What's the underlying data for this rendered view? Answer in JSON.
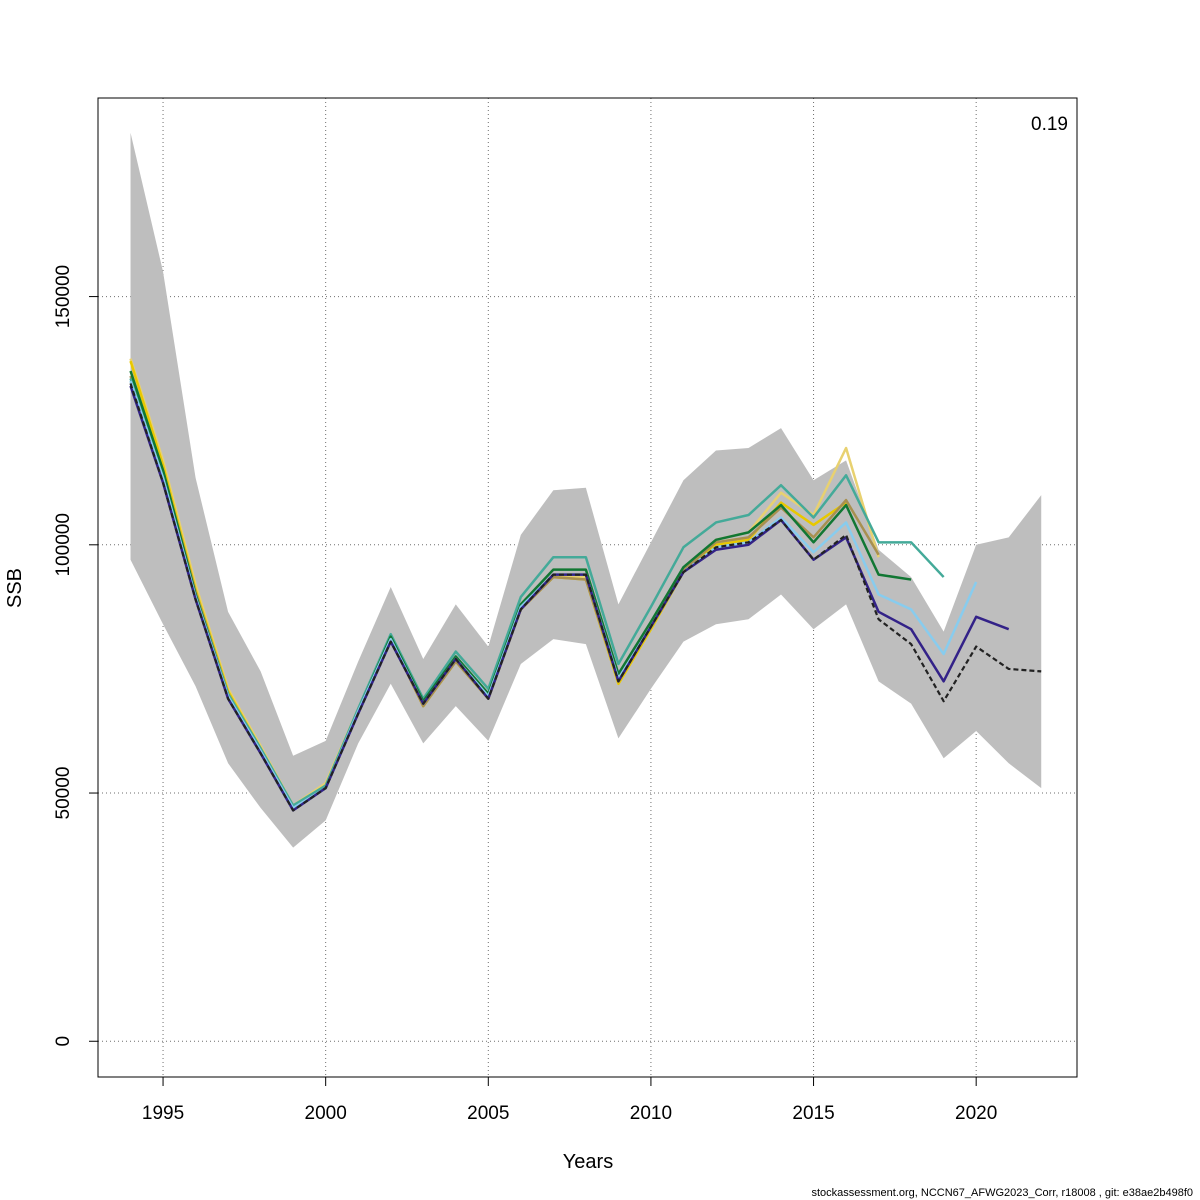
{
  "chart_data": {
    "type": "line",
    "xlabel": "Years",
    "ylabel": "SSB",
    "annotation": "0.19",
    "footer": "stockassessment.org, NCCN67_AFWG2023_Corr, r18008 , git: e38ae2b498f0",
    "xlim": [
      1993,
      2023.1
    ],
    "ylim": [
      -7200,
      190000
    ],
    "x_ticks": [
      1995,
      2000,
      2005,
      2010,
      2015,
      2020
    ],
    "y_ticks": [
      0,
      50000,
      100000,
      150000
    ],
    "grid": true,
    "confidence_band": {
      "x": [
        1994,
        1995,
        1996,
        1997,
        1998,
        1999,
        2000,
        2001,
        2002,
        2003,
        2004,
        2005,
        2006,
        2007,
        2008,
        2009,
        2010,
        2011,
        2012,
        2013,
        2014,
        2015,
        2016,
        2017,
        2018,
        2019,
        2020,
        2021,
        2022
      ],
      "lower": [
        97000,
        84000,
        71500,
        56000,
        47000,
        39000,
        44500,
        60000,
        72000,
        60000,
        67500,
        60500,
        76000,
        81000,
        80000,
        61000,
        71000,
        80500,
        84000,
        85000,
        90000,
        83000,
        88000,
        72500,
        68000,
        57000,
        62500,
        56000,
        51000
      ],
      "upper": [
        183000,
        155000,
        113500,
        86500,
        74500,
        57500,
        60500,
        76500,
        91500,
        77000,
        88000,
        79500,
        102000,
        111000,
        111500,
        88000,
        100500,
        113000,
        119000,
        119500,
        123500,
        113000,
        117000,
        99000,
        93500,
        82500,
        100000,
        101500,
        110000
      ],
      "color": "#bebebe"
    },
    "series": [
      {
        "color": "#e8d170",
        "dashed": false,
        "x": [
          1994,
          1995,
          1996,
          1997,
          1998,
          1999,
          2000,
          2001,
          2002,
          2003,
          2004,
          2005,
          2006,
          2007,
          2008,
          2009,
          2010,
          2011,
          2012,
          2013,
          2014,
          2015,
          2016,
          2017
        ],
        "values": [
          137500,
          117000,
          92000,
          71000,
          59500,
          47500,
          52000,
          67000,
          81000,
          67500,
          76500,
          69500,
          87500,
          93500,
          93500,
          72000,
          83000,
          95000,
          101000,
          102500,
          110500,
          106000,
          119500,
          97500
        ]
      },
      {
        "color": "#e8c800",
        "dashed": false,
        "x": [
          1994,
          1995,
          1996,
          1997,
          1998,
          1999,
          2000,
          2001,
          2002,
          2003,
          2004,
          2005,
          2006,
          2007,
          2008,
          2009,
          2010,
          2011,
          2012,
          2013,
          2014,
          2015,
          2016
        ],
        "values": [
          137000,
          116000,
          91000,
          70500,
          59000,
          47000,
          51500,
          66500,
          81000,
          67500,
          76500,
          69000,
          87000,
          93500,
          93000,
          72000,
          83000,
          94500,
          100000,
          101000,
          108500,
          104000,
          108500
        ]
      },
      {
        "color": "#a89050",
        "dashed": false,
        "x": [
          1994,
          1995,
          1996,
          1997,
          1998,
          1999,
          2000,
          2001,
          2002,
          2003,
          2004,
          2005,
          2006,
          2007,
          2008,
          2009,
          2010,
          2011,
          2012,
          2013,
          2014,
          2015,
          2016,
          2017
        ],
        "values": [
          134000,
          115000,
          90500,
          70000,
          58500,
          47000,
          51500,
          66500,
          81000,
          67500,
          76500,
          69000,
          87000,
          93500,
          93000,
          72500,
          83500,
          95000,
          100500,
          101500,
          107500,
          101500,
          109000,
          98000
        ]
      },
      {
        "color": "#44aa99",
        "dashed": false,
        "x": [
          1994,
          1995,
          1996,
          1997,
          1998,
          1999,
          2000,
          2001,
          2002,
          2003,
          2004,
          2005,
          2006,
          2007,
          2008,
          2009,
          2010,
          2011,
          2012,
          2013,
          2014,
          2015,
          2016,
          2017,
          2018,
          2019
        ],
        "values": [
          133500,
          114000,
          90000,
          70000,
          59000,
          47500,
          51500,
          67000,
          82000,
          69000,
          78500,
          71000,
          89500,
          97500,
          97500,
          76000,
          87500,
          99500,
          104500,
          106000,
          112000,
          105500,
          114000,
          100500,
          100500,
          93500
        ]
      },
      {
        "color": "#117733",
        "dashed": false,
        "x": [
          1994,
          1995,
          1996,
          1997,
          1998,
          1999,
          2000,
          2001,
          2002,
          2003,
          2004,
          2005,
          2006,
          2007,
          2008,
          2009,
          2010,
          2011,
          2012,
          2013,
          2014,
          2015,
          2016,
          2017,
          2018
        ],
        "values": [
          135000,
          115000,
          90000,
          69500,
          58500,
          47000,
          51000,
          66500,
          81500,
          68500,
          77500,
          70000,
          88000,
          95000,
          95000,
          74000,
          84500,
          95500,
          101000,
          102500,
          108000,
          100500,
          108000,
          94000,
          93000
        ]
      },
      {
        "color": "#88ccee",
        "dashed": false,
        "x": [
          1994,
          1995,
          1996,
          1997,
          1998,
          1999,
          2000,
          2001,
          2002,
          2003,
          2004,
          2005,
          2006,
          2007,
          2008,
          2009,
          2010,
          2011,
          2012,
          2013,
          2014,
          2015,
          2016,
          2017,
          2018,
          2019,
          2020
        ],
        "values": [
          133000,
          113500,
          89500,
          69500,
          58500,
          47000,
          51000,
          66500,
          81000,
          68000,
          77000,
          69500,
          87500,
          94000,
          94000,
          73000,
          83500,
          94500,
          99500,
          100500,
          105500,
          98500,
          104500,
          90000,
          87000,
          78000,
          92500
        ]
      },
      {
        "color": "#332288",
        "dashed": false,
        "x": [
          1994,
          1995,
          1996,
          1997,
          1998,
          1999,
          2000,
          2001,
          2002,
          2003,
          2004,
          2005,
          2006,
          2007,
          2008,
          2009,
          2010,
          2011,
          2012,
          2013,
          2014,
          2015,
          2016,
          2017,
          2018,
          2019,
          2020,
          2021
        ],
        "values": [
          132000,
          112500,
          89000,
          69000,
          58000,
          46500,
          51000,
          66000,
          80500,
          68000,
          77000,
          69000,
          87000,
          94000,
          94000,
          72500,
          83500,
          94500,
          99000,
          100000,
          105000,
          97000,
          101500,
          86500,
          83000,
          72500,
          85500,
          83000
        ]
      },
      {
        "color": "#222222",
        "dashed": true,
        "x": [
          1994,
          1995,
          1996,
          1997,
          1998,
          1999,
          2000,
          2001,
          2002,
          2003,
          2004,
          2005,
          2006,
          2007,
          2008,
          2009,
          2010,
          2011,
          2012,
          2013,
          2014,
          2015,
          2016,
          2017,
          2018,
          2019,
          2020,
          2021,
          2022
        ],
        "values": [
          132500,
          112500,
          89000,
          69000,
          58000,
          46500,
          51000,
          66000,
          80500,
          68000,
          77000,
          69000,
          87000,
          94000,
          94000,
          72500,
          83500,
          94500,
          99500,
          100500,
          105000,
          97000,
          102000,
          85000,
          80000,
          68500,
          79500,
          75000,
          74500
        ]
      }
    ]
  }
}
